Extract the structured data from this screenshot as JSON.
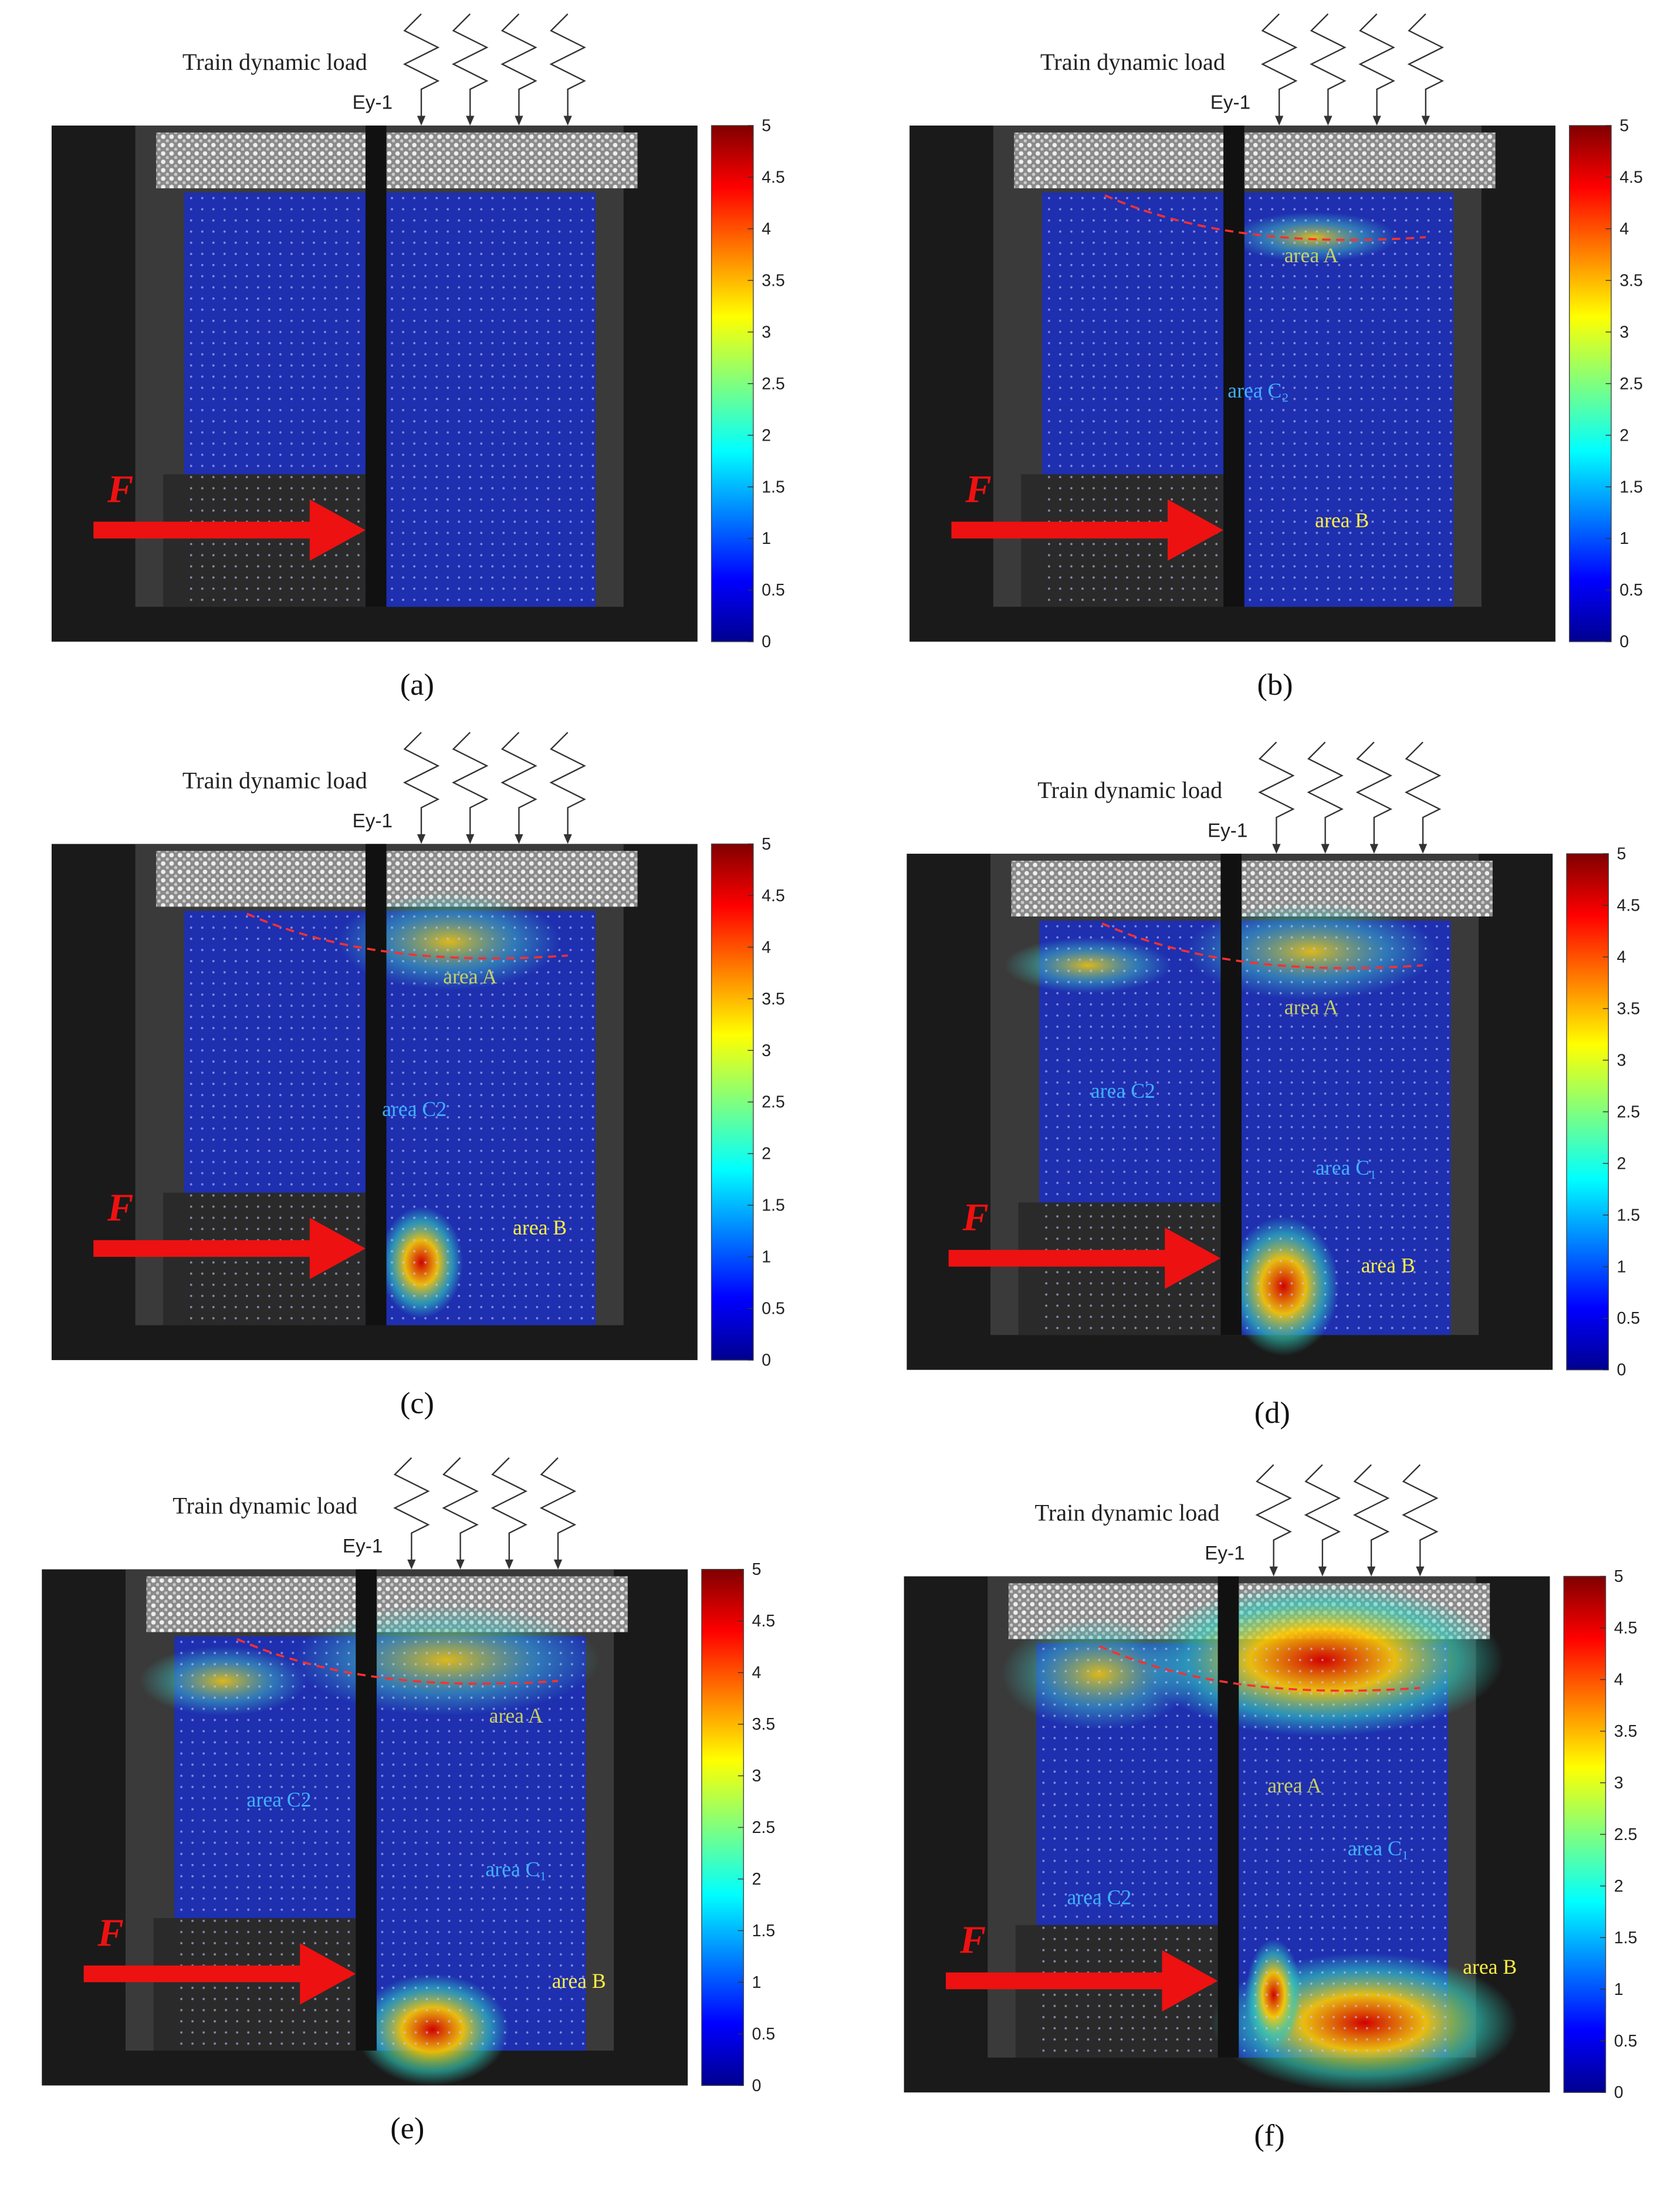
{
  "colorbar": {
    "lim": [
      0,
      5
    ],
    "ticks": [
      0,
      0.5,
      1,
      1.5,
      2,
      2.5,
      3,
      3.5,
      4,
      4.5,
      5
    ]
  },
  "panels": [
    {
      "label": "(a)",
      "load_label": "Train dynamic load",
      "gauge_label": "Ey-1",
      "force_label": "F",
      "annotations": []
    },
    {
      "label": "(b)",
      "load_label": "Train dynamic load",
      "gauge_label": "Ey-1",
      "force_label": "F",
      "annotations": [
        "area A",
        "area C₂",
        "area B"
      ]
    },
    {
      "label": "(c)",
      "load_label": "Train dynamic load",
      "gauge_label": "Ey-1",
      "force_label": "F",
      "annotations": [
        "area A",
        "area C2",
        "area B"
      ]
    },
    {
      "label": "(d)",
      "load_label": "Train dynamic load",
      "gauge_label": "Ey-1",
      "force_label": "F",
      "annotations": [
        "area A",
        "area C2",
        "area C₁",
        "area B"
      ]
    },
    {
      "label": "(e)",
      "load_label": "Train dynamic load",
      "gauge_label": "Ey-1",
      "force_label": "F",
      "annotations": [
        "area A",
        "area C2",
        "area C₁",
        "area B"
      ]
    },
    {
      "label": "(f)",
      "load_label": "Train dynamic load",
      "gauge_label": "Ey-1",
      "force_label": "F",
      "annotations": [
        "area A",
        "area C2",
        "area C₁",
        "area B"
      ]
    }
  ]
}
